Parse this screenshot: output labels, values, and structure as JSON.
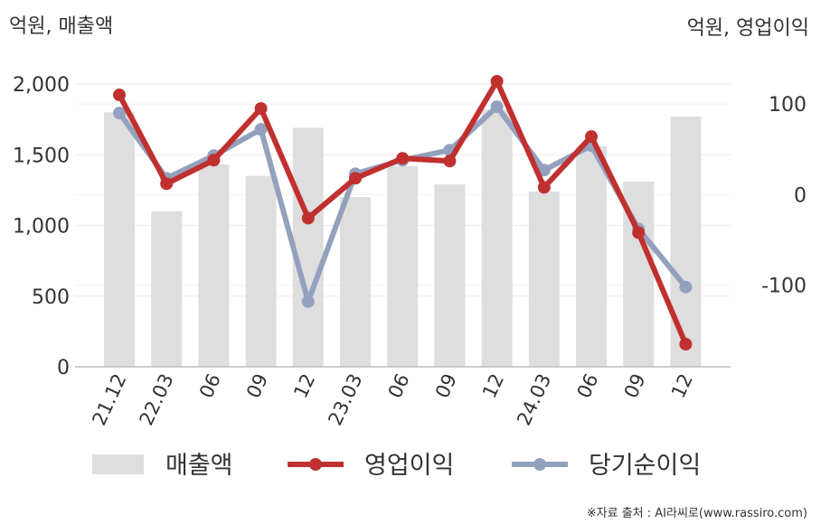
{
  "chart_data": {
    "type": "bar+line",
    "categories": [
      "21.12",
      "22.03",
      "06",
      "09",
      "12",
      "23.03",
      "06",
      "09",
      "12",
      "24.03",
      "06",
      "09",
      "12"
    ],
    "left_axis": {
      "label": "억원, 매출액",
      "ticks": [
        "0",
        "500",
        "1,000",
        "1,500",
        "2,000"
      ],
      "ylim": [
        0,
        2000
      ]
    },
    "right_axis": {
      "label": "억원, 영업이익",
      "ticks": [
        "-100",
        "0",
        "100"
      ],
      "ylim": [
        -190,
        122
      ]
    },
    "series": [
      {
        "name": "매출액",
        "type": "bar",
        "axis": "left",
        "color": "#dedede",
        "values": [
          1800,
          1100,
          1430,
          1350,
          1690,
          1200,
          1420,
          1290,
          1820,
          1240,
          1560,
          1310,
          1770
        ]
      },
      {
        "name": "영업이익",
        "type": "line",
        "axis": "right",
        "color": "#c0302f",
        "values": [
          110,
          12,
          38,
          95,
          -26,
          18,
          40,
          37,
          125,
          8,
          64,
          -42,
          -165
        ]
      },
      {
        "name": "당기순이익",
        "type": "line",
        "axis": "right",
        "color": "#94a1bd",
        "values": [
          90,
          18,
          43,
          72,
          -118,
          23,
          38,
          49,
          97,
          27,
          54,
          -38,
          -102
        ]
      }
    ],
    "legend": {
      "placement": "bottom"
    },
    "grid": true
  },
  "source_note": "※자료 출처 : AI라씨로(www.rassiro.com)"
}
